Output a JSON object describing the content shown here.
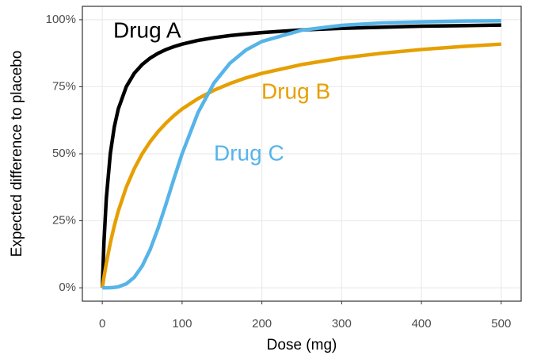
{
  "chart_data": {
    "type": "line",
    "x_label": "Dose (mg)",
    "y_label": "Expected difference to placebo",
    "x": [
      0,
      2,
      5,
      10,
      15,
      20,
      30,
      40,
      50,
      60,
      70,
      80,
      90,
      100,
      120,
      140,
      160,
      180,
      200,
      250,
      300,
      350,
      400,
      450,
      500
    ],
    "series": [
      {
        "name": "Drug A",
        "color": "#000000",
        "values": [
          0,
          16.7,
          33.3,
          50,
          60,
          66.7,
          75,
          80,
          83.3,
          85.7,
          87.5,
          88.9,
          90,
          90.9,
          92.3,
          93.3,
          94.1,
          94.7,
          95.2,
          96.2,
          96.8,
          97.2,
          97.6,
          97.8,
          98.0
        ]
      },
      {
        "name": "Drug B",
        "color": "#E69F00",
        "values": [
          0,
          3.8,
          9.1,
          16.7,
          23.1,
          28.6,
          37.5,
          44.4,
          50,
          54.5,
          58.3,
          61.5,
          64.3,
          66.7,
          70.6,
          73.7,
          76.2,
          78.3,
          80,
          83.3,
          85.7,
          87.5,
          88.9,
          90,
          90.9
        ]
      },
      {
        "name": "Drug C",
        "color": "#56B4E9",
        "values": [
          0,
          0,
          0,
          0.03,
          0.13,
          0.36,
          1.46,
          3.89,
          8.12,
          14.3,
          22.3,
          31.4,
          40.9,
          50,
          65.4,
          76.4,
          83.8,
          88.7,
          91.9,
          96.1,
          97.9,
          98.8,
          99.2,
          99.5,
          99.6
        ]
      }
    ],
    "xlim": [
      -25,
      525
    ],
    "ylim": [
      -5,
      105
    ],
    "xticks": [
      0,
      100,
      200,
      300,
      400,
      500
    ],
    "yticks": [
      {
        "value": 0,
        "label": "0%"
      },
      {
        "value": 25,
        "label": "25%"
      },
      {
        "value": 50,
        "label": "50%"
      },
      {
        "value": 75,
        "label": "75%"
      },
      {
        "value": 100,
        "label": "100%"
      }
    ],
    "grid": true
  }
}
